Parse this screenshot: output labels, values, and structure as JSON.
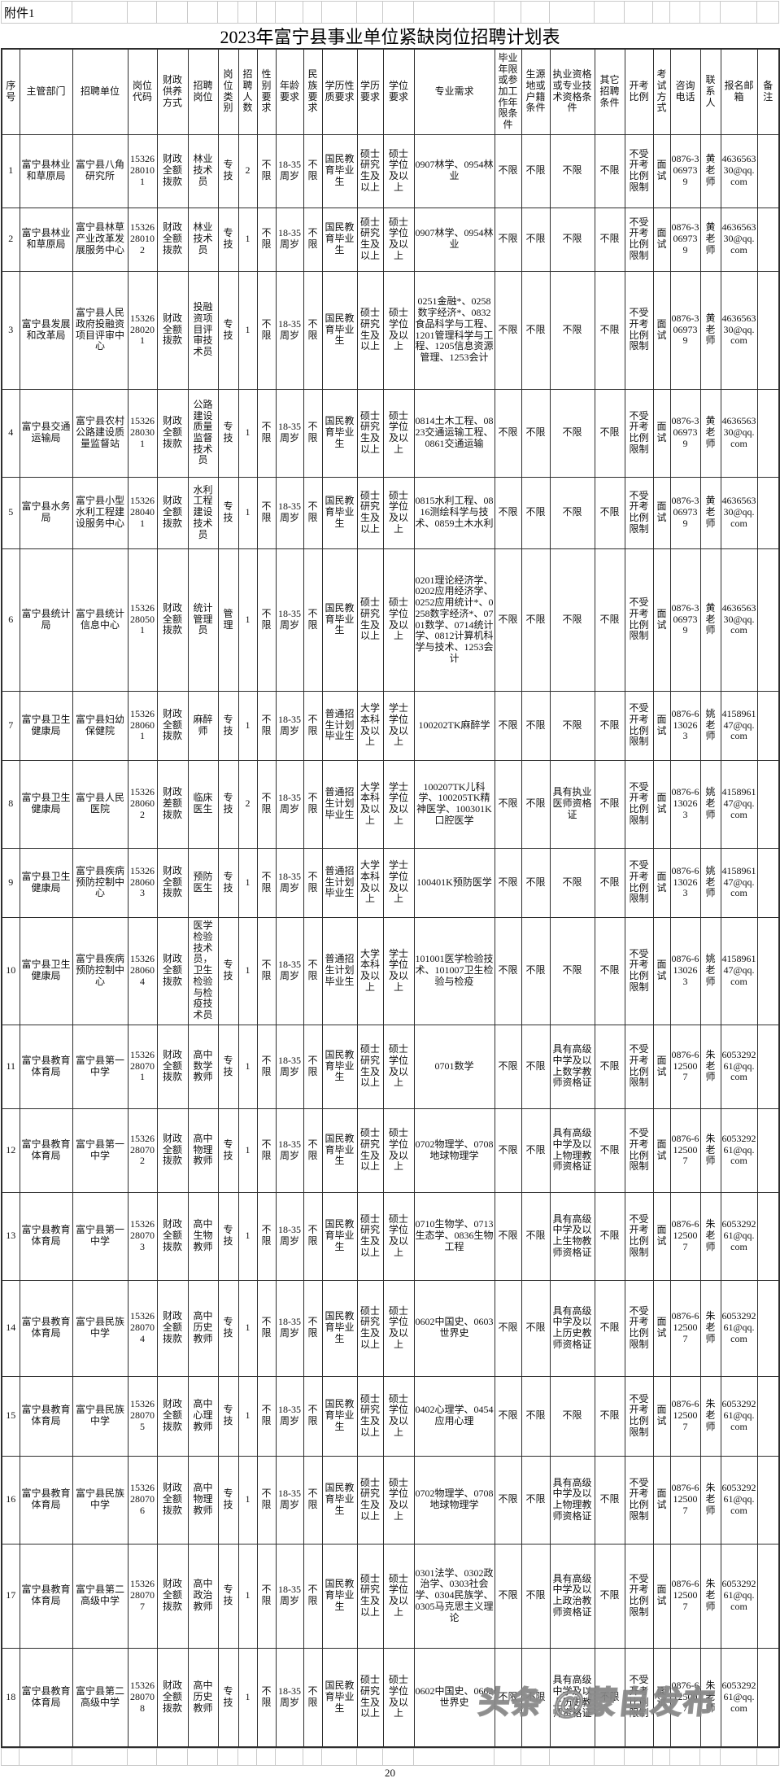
{
  "page": {
    "attachment_label": "附件1",
    "title": "2023年富宁县事业单位紧缺岗位招聘计划表",
    "page_number": "20",
    "watermark": "头条 @蒙自发布"
  },
  "table": {
    "headers": [
      "序号",
      "主管部门",
      "招聘单位",
      "岗位代码",
      "财政供养方式",
      "招聘岗位",
      "岗位类别",
      "招聘人数",
      "性别要求",
      "年龄要求",
      "民族要求",
      "学历性质要求",
      "学历要求",
      "学位要求",
      "专业需求",
      "毕业年限或参加工作年限条件",
      "生源地或户籍条件",
      "执业资格或专业技术资格条件",
      "其它招聘条件",
      "开考比例",
      "考试方式",
      "咨询电话",
      "联系人",
      "报名邮箱",
      "备注"
    ],
    "rows": [
      [
        "1",
        "富宁县林业和草原局",
        "富宁县八角研究所",
        "15326280101",
        "财政全额拨款",
        "林业技术员",
        "专技",
        "2",
        "不限",
        "18-35周岁",
        "不限",
        "国民教育毕业生",
        "硕士研究生及以上",
        "硕士学位及以上",
        "0907林学、0954林业",
        "不限",
        "不限",
        "不限",
        "不限",
        "不受开考比例限制",
        "面试",
        "0876-3069739",
        "黄老师",
        "463656330@qq.com",
        ""
      ],
      [
        "2",
        "富宁县林业和草原局",
        "富宁县林草产业改革发展服务中心",
        "15326280102",
        "财政全额拨款",
        "林业技术员",
        "专技",
        "1",
        "不限",
        "18-35周岁",
        "不限",
        "国民教育毕业生",
        "硕士研究生及以上",
        "硕士学位及以上",
        "0907林学、0954林业",
        "不限",
        "不限",
        "不限",
        "不限",
        "不受开考比例限制",
        "面试",
        "0876-3069739",
        "黄老师",
        "463656330@qq.com",
        ""
      ],
      [
        "3",
        "富宁县发展和改革局",
        "富宁县人民政府投融资项目评审中心",
        "15326280201",
        "财政全额拨款",
        "投融资项目评审技术员",
        "专技",
        "1",
        "不限",
        "18-35周岁",
        "不限",
        "国民教育毕业生",
        "硕士研究生及以上",
        "硕士学位及以上",
        "0251金融*、0258数字经济*、0832食品科学与工程、1201管理科学与工程、1205信息资源管理、1253会计",
        "不限",
        "不限",
        "不限",
        "不限",
        "不受开考比例限制",
        "面试",
        "0876-3069739",
        "黄老师",
        "463656330@qq.com",
        ""
      ],
      [
        "4",
        "富宁县交通运输局",
        "富宁县农村公路建设质量监督站",
        "15326280301",
        "财政全额拨款",
        "公路建设质量监督技术员",
        "专技",
        "1",
        "不限",
        "18-35周岁",
        "不限",
        "国民教育毕业生",
        "硕士研究生及以上",
        "硕士学位及以上",
        "0814土木工程、0823交通运输工程、0861交通运输",
        "不限",
        "不限",
        "不限",
        "不限",
        "不受开考比例限制",
        "面试",
        "0876-3069739",
        "黄老师",
        "463656330@qq.com",
        ""
      ],
      [
        "5",
        "富宁县水务局",
        "富宁县小型水利工程建设服务中心",
        "15326280401",
        "财政全额拨款",
        "水利工程建设技术员",
        "专技",
        "1",
        "不限",
        "18-35周岁",
        "不限",
        "国民教育毕业生",
        "硕士研究生及以上",
        "硕士学位及以上",
        "0815水利工程、0816测绘科学与技术、0859土木水利",
        "不限",
        "不限",
        "不限",
        "不限",
        "不受开考比例限制",
        "面试",
        "0876-3069739",
        "黄老师",
        "463656330@qq.com",
        ""
      ],
      [
        "6",
        "富宁县统计局",
        "富宁县统计信息中心",
        "15326280501",
        "财政全额拨款",
        "统计管理员",
        "管理",
        "1",
        "不限",
        "18-35周岁",
        "不限",
        "国民教育毕业生",
        "硕士研究生及以上",
        "硕士学位及以上",
        "0201理论经济学、0202应用经济学、0252应用统计*、0258数字经济*、0701数学、0714统计学、0812计算机科学与技术、1253会计",
        "不限",
        "不限",
        "不限",
        "不限",
        "不受开考比例限制",
        "面试",
        "0876-3069739",
        "黄老师",
        "463656330@qq.com",
        ""
      ],
      [
        "7",
        "富宁县卫生健康局",
        "富宁县妇幼保健院",
        "15326280601",
        "财政全额拨款",
        "麻醉师",
        "专技",
        "1",
        "不限",
        "18-35周岁",
        "不限",
        "普通招生计划毕业生",
        "大学本科及以上",
        "学士学位及以上",
        "100202TK麻醉学",
        "不限",
        "不限",
        "不限",
        "不限",
        "不受开考比例限制",
        "面试",
        "0876-6130263",
        "姚老师",
        "415896147@qq.com",
        ""
      ],
      [
        "8",
        "富宁县卫生健康局",
        "富宁县人民医院",
        "15326280602",
        "财政差额拨款",
        "临床医生",
        "专技",
        "2",
        "不限",
        "18-35周岁",
        "不限",
        "普通招生计划毕业生",
        "大学本科及以上",
        "学士学位及以上",
        "100207TK儿科学、100205TK精神医学、100301K口腔医学",
        "不限",
        "不限",
        "具有执业医师资格证",
        "不限",
        "不受开考比例限制",
        "面试",
        "0876-6130263",
        "姚老师",
        "415896147@qq.com",
        ""
      ],
      [
        "9",
        "富宁县卫生健康局",
        "富宁县疾病预防控制中心",
        "15326280603",
        "财政全额拨款",
        "预防医生",
        "专技",
        "1",
        "不限",
        "18-35周岁",
        "不限",
        "普通招生计划毕业生",
        "大学本科及以上",
        "学士学位及以上",
        "100401K预防医学",
        "不限",
        "不限",
        "不限",
        "不限",
        "不受开考比例限制",
        "面试",
        "0876-6130263",
        "姚老师",
        "415896147@qq.com",
        ""
      ],
      [
        "10",
        "富宁县卫生健康局",
        "富宁县疾病预防控制中心",
        "15326280604",
        "财政全额拨款",
        "医学检验技术员，卫生检验与检疫技术员",
        "专技",
        "1",
        "不限",
        "18-35周岁",
        "不限",
        "普通招生计划毕业生",
        "大学本科及以上",
        "学士学位及以上",
        "101001医学检验技术、101007卫生检验与检疫",
        "不限",
        "不限",
        "不限",
        "不限",
        "不受开考比例限制",
        "面试",
        "0876-6130263",
        "姚老师",
        "415896147@qq.com",
        ""
      ],
      [
        "11",
        "富宁县教育体育局",
        "富宁县第一中学",
        "15326280701",
        "财政全额拨款",
        "高中数学教师",
        "专技",
        "1",
        "不限",
        "18-35周岁",
        "不限",
        "国民教育毕业生",
        "硕士研究生及以上",
        "硕士学位及以上",
        "0701数学",
        "不限",
        "不限",
        "具有高级中学及以上数学教师资格证",
        "不限",
        "不受开考比例限制",
        "面试",
        "0876-6125007",
        "朱老师",
        "605329261@qq.com",
        ""
      ],
      [
        "12",
        "富宁县教育体育局",
        "富宁县第一中学",
        "15326280702",
        "财政全额拨款",
        "高中物理教师",
        "专技",
        "1",
        "不限",
        "18-35周岁",
        "不限",
        "国民教育毕业生",
        "硕士研究生及以上",
        "硕士学位及以上",
        "0702物理学、0708地球物理学",
        "不限",
        "不限",
        "具有高级中学及以上物理教师资格证",
        "不限",
        "不受开考比例限制",
        "面试",
        "0876-6125007",
        "朱老师",
        "605329261@qq.com",
        ""
      ],
      [
        "13",
        "富宁县教育体育局",
        "富宁县第一中学",
        "15326280703",
        "财政全额拨款",
        "高中生物教师",
        "专技",
        "1",
        "不限",
        "18-35周岁",
        "不限",
        "国民教育毕业生",
        "硕士研究生及以上",
        "硕士学位及以上",
        "0710生物学、0713生态学、0836生物工程",
        "不限",
        "不限",
        "具有高级中学及以上生物教师资格证",
        "不限",
        "不受开考比例限制",
        "面试",
        "0876-6125007",
        "朱老师",
        "605329261@qq.com",
        ""
      ],
      [
        "14",
        "富宁县教育体育局",
        "富宁县民族中学",
        "15326280704",
        "财政全额拨款",
        "高中历史教师",
        "专技",
        "1",
        "不限",
        "18-35周岁",
        "不限",
        "国民教育毕业生",
        "硕士研究生及以上",
        "硕士学位及以上",
        "0602中国史、0603世界史",
        "不限",
        "不限",
        "具有高级中学及以上历史教师资格证",
        "不限",
        "不受开考比例限制",
        "面试",
        "0876-6125007",
        "朱老师",
        "605329261@qq.com",
        ""
      ],
      [
        "15",
        "富宁县教育体育局",
        "富宁县民族中学",
        "15326280705",
        "财政全额拨款",
        "高中心理教师",
        "专技",
        "1",
        "不限",
        "18-35周岁",
        "不限",
        "国民教育毕业生",
        "硕士研究生及以上",
        "硕士学位及以上",
        "0402心理学、0454应用心理",
        "不限",
        "不限",
        "不限",
        "不限",
        "不受开考比例限制",
        "面试",
        "0876-6125007",
        "朱老师",
        "605329261@qq.com",
        ""
      ],
      [
        "16",
        "富宁县教育体育局",
        "富宁县民族中学",
        "15326280706",
        "财政全额拨款",
        "高中物理教师",
        "专技",
        "1",
        "不限",
        "18-35周岁",
        "不限",
        "国民教育毕业生",
        "硕士研究生及以上",
        "硕士学位及以上",
        "0702物理学、0708地球物理学",
        "不限",
        "不限",
        "具有高级中学及以上物理教师资格证",
        "不限",
        "不受开考比例限制",
        "面试",
        "0876-6125007",
        "朱老师",
        "605329261@qq.com",
        ""
      ],
      [
        "17",
        "富宁县教育体育局",
        "富宁县第二高级中学",
        "15326280707",
        "财政全额拨款",
        "高中政治教师",
        "专技",
        "1",
        "不限",
        "18-35周岁",
        "不限",
        "国民教育毕业生",
        "硕士研究生及以上",
        "硕士学位及以上",
        "0301法学、0302政治学、0303社会学、0304民族学、0305马克思主义理论",
        "不限",
        "不限",
        "具有高级中学及以上政治教师资格证",
        "不限",
        "不受开考比例限制",
        "面试",
        "0876-6125007",
        "朱老师",
        "605329261@qq.com",
        ""
      ],
      [
        "18",
        "富宁县教育体育局",
        "富宁县第二高级中学",
        "15326280708",
        "财政全额拨款",
        "高中历史教师",
        "专技",
        "1",
        "不限",
        "18-35周岁",
        "不限",
        "国民教育毕业生",
        "硕士研究生及以上",
        "硕士学位及以上",
        "0602中国史、0603世界史",
        "不限",
        "不限",
        "具有高级中学及以上历史教师资格证",
        "不限",
        "不受开考比例限制",
        "面试",
        "0876-6125007",
        "朱老师",
        "605329261@qq.com",
        ""
      ]
    ]
  }
}
